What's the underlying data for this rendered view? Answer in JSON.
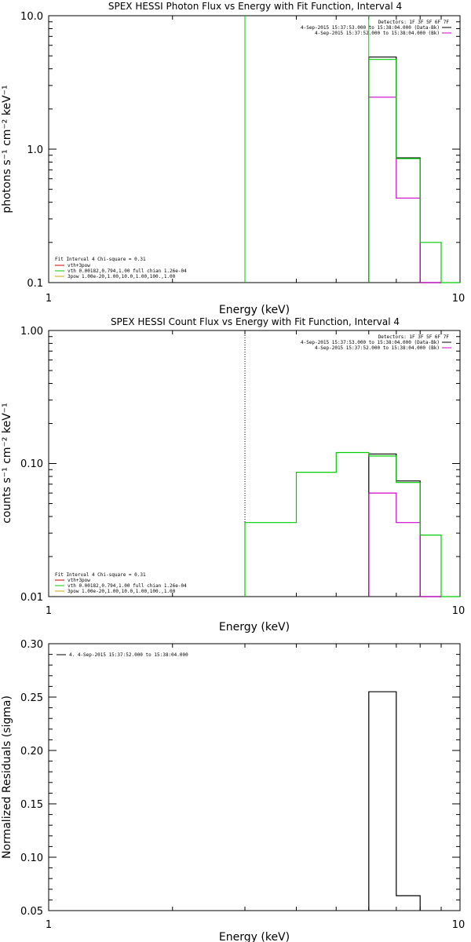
{
  "chart_data": [
    {
      "type": "line",
      "title": "SPEX HESSI Photon Flux vs Energy with Fit Function, Interval 4",
      "xlabel": "Energy (keV)",
      "ylabel": "photons s⁻¹ cm⁻² keV⁻¹",
      "xscale": "log",
      "yscale": "log",
      "xlim": [
        1,
        10
      ],
      "ylim": [
        0.1,
        10
      ],
      "xticks": [
        "1",
        "10"
      ],
      "yticks": [
        "0.1",
        "1.0",
        "10.0"
      ],
      "energy_marker_kev": 3.0,
      "info_lines": [
        "Detectors: 1F 3F 5F 6F 7F",
        "4-Sep-2015 15:37:53.000 to 15:38:04.000 (Data-Bk)",
        "4-Sep-2015 15:37:52.000 to 15:38:04.000 (Bk)"
      ],
      "fit_lines": [
        "Fit Interval  4   Chi-square = 0.31",
        "vth+3pow",
        "vth 0.00182,0.794,1.00  full chian 1.26e-04",
        "3pow 1.00e-20,1.00,10.0,1.00,100.,1.00"
      ],
      "series": [
        {
          "name": "(Data-Bk)",
          "color": "#000000",
          "edges": [
            6,
            7,
            8,
            9
          ],
          "values": [
            4.9,
            0.86,
            0.1
          ]
        },
        {
          "name": "(Bk)",
          "color": "#cc00cc",
          "edges": [
            6,
            7,
            8,
            9
          ],
          "values": [
            2.45,
            0.43,
            0.1
          ]
        },
        {
          "name": "vth",
          "color": "#00cc00",
          "edges": [
            6,
            7,
            8,
            9,
            10
          ],
          "values": [
            4.7,
            0.85,
            0.2,
            0.1
          ]
        }
      ],
      "colors": {
        "data": "#000000",
        "background": "#cc00cc",
        "fit": "#00cc00",
        "thick": "#cc0000",
        "pow": "#ccaa00"
      }
    },
    {
      "type": "line",
      "title": "SPEX HESSI Count Flux vs Energy with Fit Function, Interval 4",
      "xlabel": "Energy (keV)",
      "ylabel": "counts s⁻¹ cm⁻² keV⁻¹",
      "xscale": "log",
      "yscale": "log",
      "xlim": [
        1,
        10
      ],
      "ylim": [
        0.01,
        1
      ],
      "xticks": [
        "1",
        "10"
      ],
      "yticks": [
        "0.01",
        "0.10",
        "1.00"
      ],
      "energy_marker_kev": 3.0,
      "info_lines": [
        "Detectors: 1F 3F 5F 6F 7F",
        "4-Sep-2015 15:37:53.000 to 15:38:04.000 (Data-Bk)",
        "4-Sep-2015 15:37:52.000 to 15:38:04.000 (Bk)"
      ],
      "fit_lines": [
        "Fit Interval  4   Chi-square = 0.31",
        "vth+3pow",
        "vth 0.00182,0.794,1.00  full chian 1.26e-04",
        "3pow 1.00e-20,1.00,10.0,1.00,100.,1.00"
      ],
      "series": [
        {
          "name": "(Data-Bk)",
          "color": "#000000",
          "edges": [
            6,
            7,
            8,
            9
          ],
          "values": [
            0.118,
            0.074,
            0.01
          ]
        },
        {
          "name": "(Bk)",
          "color": "#cc00cc",
          "edges": [
            6,
            7,
            8,
            9
          ],
          "values": [
            0.06,
            0.036,
            0.01
          ]
        },
        {
          "name": "vth",
          "color": "#00cc00",
          "edges": [
            3,
            4,
            5,
            6,
            7,
            8,
            9,
            10
          ],
          "values": [
            0.036,
            0.086,
            0.121,
            0.114,
            0.072,
            0.029,
            0.01
          ]
        }
      ],
      "colors": {
        "data": "#000000",
        "background": "#cc00cc",
        "fit": "#00cc00",
        "thick": "#cc0000",
        "pow": "#ccaa00"
      }
    },
    {
      "type": "line",
      "title": "",
      "xlabel": "Energy (keV)",
      "ylabel": "Normalized Residuals (sigma)",
      "xscale": "log",
      "yscale": "linear",
      "xlim": [
        1,
        10
      ],
      "ylim": [
        0.05,
        0.3
      ],
      "xticks": [
        "1",
        "10"
      ],
      "yticks": [
        "0.05",
        "0.10",
        "0.15",
        "0.20",
        "0.25",
        "0.30"
      ],
      "legend_line": "4.  4-Sep-2015 15:37:52.000 to 15:38:04.000",
      "series": [
        {
          "name": "4.  4-Sep-2015 15:37:52.000 to 15:38:04.000",
          "color": "#000000",
          "edges": [
            6,
            7,
            8
          ],
          "values": [
            0.255,
            0.064
          ]
        }
      ]
    }
  ]
}
